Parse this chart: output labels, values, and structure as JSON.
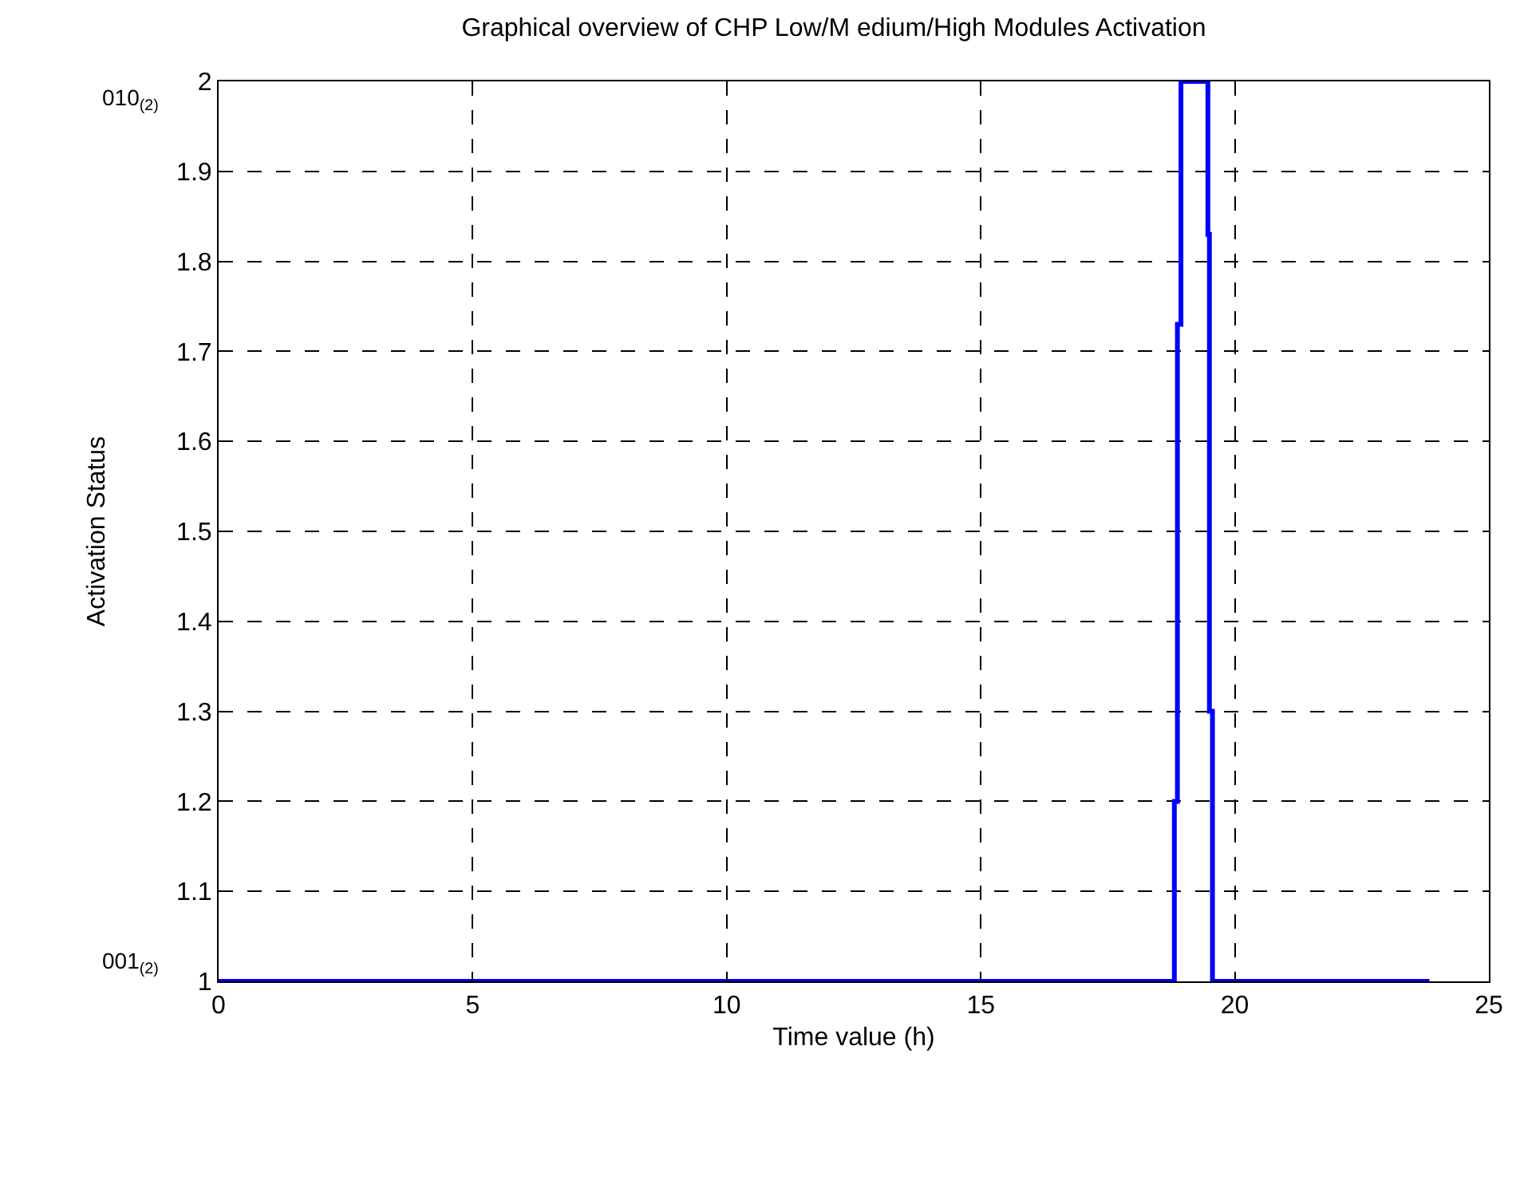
{
  "chart_data": {
    "type": "step",
    "title": "Graphical overview of CHP Low/M edium/High Modules Activation",
    "xlabel": "Time value (h)",
    "ylabel": "Activation Status",
    "x": [
      0,
      18.81,
      18.87,
      18.94,
      19.47,
      19.5,
      19.56,
      19.63,
      23.83
    ],
    "series": [
      {
        "color": "#0000ff",
        "values": [
          1,
          1.2,
          1.73,
          2,
          1.83,
          1.3,
          1,
          1,
          1
        ]
      }
    ],
    "xlim": [
      0,
      25
    ],
    "xticks": [
      0,
      5,
      10,
      15,
      20,
      25
    ],
    "ylim": [
      1,
      2
    ],
    "yticks": [
      1,
      1.1,
      1.2,
      1.3,
      1.4,
      1.5,
      1.6,
      1.7,
      1.8,
      1.9,
      2
    ],
    "annotations": [
      "010$_{(2)}$",
      "001$_{(2)}$"
    ],
    "grid": true,
    "legend": false,
    "line_style": "solid",
    "marker": "none"
  }
}
